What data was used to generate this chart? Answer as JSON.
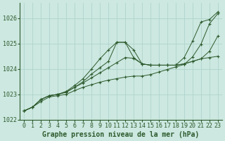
{
  "background_color": "#cce8e0",
  "grid_color": "#aad0c8",
  "line_color": "#2d5a2d",
  "xlabel": "Graphe pression niveau de la mer (hPa)",
  "xlabel_fontsize": 7,
  "tick_fontsize": 6,
  "ylim": [
    1022.0,
    1026.6
  ],
  "xlim": [
    -0.5,
    23.5
  ],
  "yticks": [
    1022,
    1023,
    1024,
    1025,
    1026
  ],
  "xticks": [
    0,
    1,
    2,
    3,
    4,
    5,
    6,
    7,
    8,
    9,
    10,
    11,
    12,
    13,
    14,
    15,
    16,
    17,
    18,
    19,
    20,
    21,
    22,
    23
  ],
  "series": [
    [
      1022.35,
      1022.5,
      1022.8,
      1022.95,
      1023.0,
      1023.1,
      1023.28,
      1023.5,
      1023.8,
      1024.05,
      1024.3,
      1025.05,
      1025.05,
      1024.45,
      1024.2,
      1024.15,
      1024.15,
      1024.15,
      1024.15,
      1024.45,
      1025.1,
      1025.85,
      1025.95,
      1026.25
    ],
    [
      1022.35,
      1022.5,
      1022.8,
      1022.95,
      1023.0,
      1023.12,
      1023.35,
      1023.62,
      1024.0,
      1024.4,
      1024.75,
      1025.05,
      1025.05,
      1024.75,
      1024.2,
      1024.15,
      1024.15,
      1024.15,
      1024.15,
      1024.2,
      1024.3,
      1024.4,
      1024.45,
      1024.5
    ],
    [
      1022.35,
      1022.5,
      1022.8,
      1022.95,
      1023.0,
      1023.08,
      1023.28,
      1023.45,
      1023.65,
      1023.85,
      1024.05,
      1024.25,
      1024.45,
      1024.42,
      1024.2,
      1024.15,
      1024.15,
      1024.15,
      1024.15,
      1024.2,
      1024.3,
      1024.4,
      1024.7,
      1025.3
    ],
    [
      1022.35,
      1022.5,
      1022.72,
      1022.9,
      1022.95,
      1023.0,
      1023.15,
      1023.28,
      1023.38,
      1023.48,
      1023.56,
      1023.62,
      1023.68,
      1023.72,
      1023.72,
      1023.78,
      1023.88,
      1023.98,
      1024.08,
      1024.18,
      1024.48,
      1024.98,
      1025.78,
      1026.18
    ]
  ]
}
